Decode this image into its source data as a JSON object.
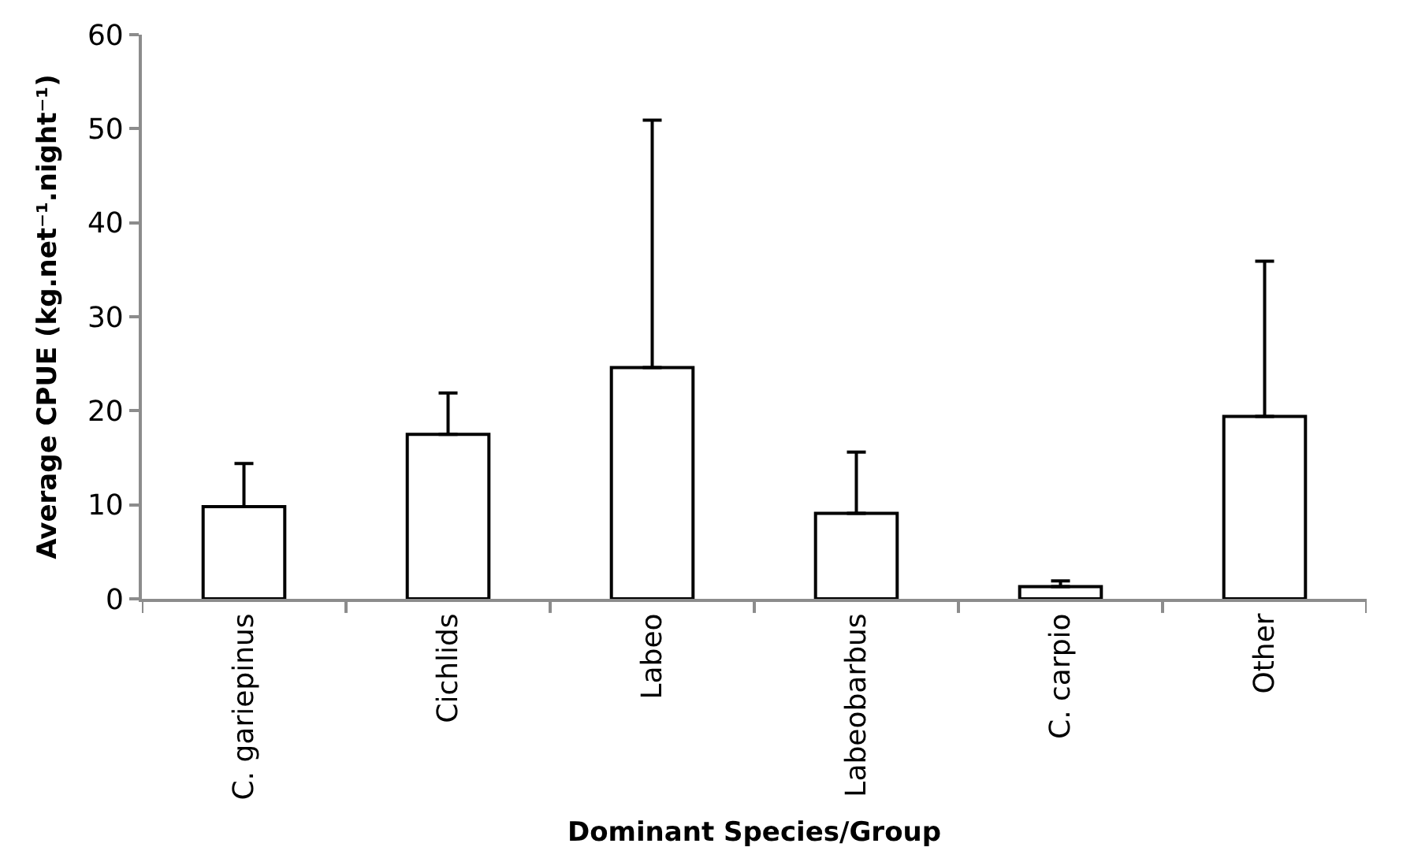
{
  "chart_data": {
    "type": "bar",
    "xlabel": "Dominant Species/Group",
    "ylabel": "Average CPUE (kg.net⁻¹.night⁻¹)",
    "categories": [
      "C. gariepinus",
      "Cichlids",
      "Labeo",
      "Labeobarbus",
      "C. carpio",
      "Other"
    ],
    "values": [
      9.8,
      17.5,
      24.6,
      9.1,
      1.3,
      19.4
    ],
    "errors": [
      [
        9.8,
        14.4
      ],
      [
        17.5,
        21.9
      ],
      [
        24.6,
        50.9
      ],
      [
        9.1,
        15.6
      ],
      [
        1.3,
        1.9
      ],
      [
        19.4,
        35.9
      ]
    ],
    "color": "#ffffff",
    "ylim": [
      0,
      60
    ],
    "yticks": [
      0,
      10,
      20,
      30,
      40,
      50,
      60
    ]
  }
}
